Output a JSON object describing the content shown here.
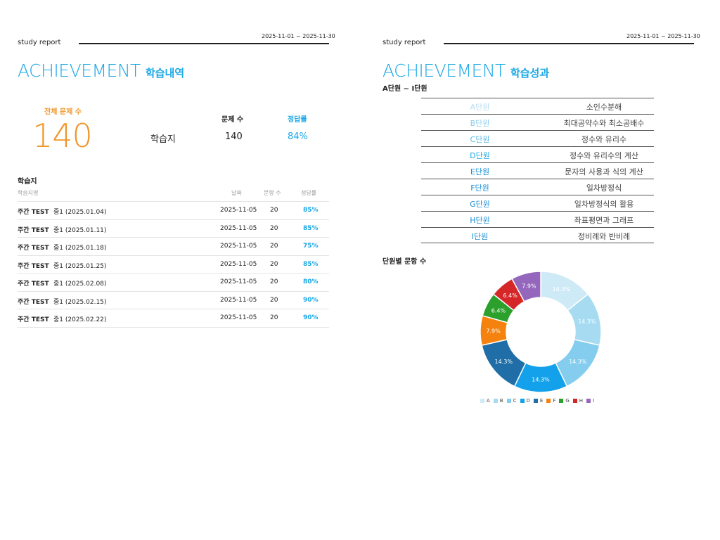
{
  "colors": {
    "accent": "#1aa7e6",
    "orange": "#f0962a"
  },
  "left": {
    "header_label": "study report",
    "header_date": "2025-11-01 ~ 2025-11-30",
    "title_big": "ACHIEVEMENT",
    "title_small": "학습내역",
    "summary": {
      "total_label": "전체 문제 수",
      "total_value": "140",
      "col_count_label": "문제 수",
      "col_rate_label": "정답률",
      "row_label": "학습지",
      "row_count": "140",
      "row_rate": "84%"
    },
    "worksheets": {
      "section_title": "학습지",
      "headers": {
        "name": "학습지명",
        "date": "날짜",
        "count": "문항 수",
        "rate": "정답률"
      },
      "rows": [
        {
          "name": "주간 TEST",
          "sub": "중1 (2025.01.04)",
          "date": "2025-11-05",
          "count": "20",
          "rate": "85%"
        },
        {
          "name": "주간 TEST",
          "sub": "중1 (2025.01.11)",
          "date": "2025-11-05",
          "count": "20",
          "rate": "85%"
        },
        {
          "name": "주간 TEST",
          "sub": "중1 (2025.01.18)",
          "date": "2025-11-05",
          "count": "20",
          "rate": "75%"
        },
        {
          "name": "주간 TEST",
          "sub": "중1 (2025.01.25)",
          "date": "2025-11-05",
          "count": "20",
          "rate": "85%"
        },
        {
          "name": "주간 TEST",
          "sub": "중1 (2025.02.08)",
          "date": "2025-11-05",
          "count": "20",
          "rate": "80%"
        },
        {
          "name": "주간 TEST",
          "sub": "중1 (2025.02.15)",
          "date": "2025-11-05",
          "count": "20",
          "rate": "90%"
        },
        {
          "name": "주간 TEST",
          "sub": "중1 (2025.02.22)",
          "date": "2025-11-05",
          "count": "20",
          "rate": "90%"
        }
      ]
    }
  },
  "right": {
    "header_label": "study report",
    "header_date": "2025-11-01 ~ 2025-11-30",
    "title_big": "ACHIEVEMENT",
    "title_small": "학습성과",
    "range_label": "A단원 ~ I단원",
    "units": [
      {
        "name": "A단원",
        "desc": "소인수분해",
        "color": "#b3ddf2"
      },
      {
        "name": "B단원",
        "desc": "최대공약수와 최소공배수",
        "color": "#8ccdee"
      },
      {
        "name": "C단원",
        "desc": "정수와 유리수",
        "color": "#5bb8e8"
      },
      {
        "name": "D단원",
        "desc": "정수와 유리수의 계산",
        "color": "#1aa7e6"
      },
      {
        "name": "E단원",
        "desc": "문자의 사용과 식의 계산",
        "color": "#1a8fd6"
      },
      {
        "name": "F단원",
        "desc": "일차방정식",
        "color": "#1a8fd6"
      },
      {
        "name": "G단원",
        "desc": "일차방정식의 활용",
        "color": "#1a8fd6"
      },
      {
        "name": "H단원",
        "desc": "좌표평면과 그래프",
        "color": "#1a8fd6"
      },
      {
        "name": "I단원",
        "desc": "정비례와 반비례",
        "color": "#1a8fd6"
      }
    ],
    "chart_title": "단원별 문항 수"
  },
  "chart_data": {
    "type": "pie",
    "title": "단원별 문항 수",
    "donut": true,
    "categories": [
      "A",
      "B",
      "C",
      "D",
      "E",
      "F",
      "G",
      "H",
      "I"
    ],
    "values": [
      14.3,
      14.3,
      14.3,
      14.3,
      14.3,
      7.9,
      6.4,
      6.4,
      7.9
    ],
    "labels": [
      "14.3%",
      "14.3%",
      "14.3%",
      "14.3%",
      "14.3%",
      "7.9%",
      "6.4%",
      "6.4%",
      "7.9%"
    ],
    "colors": [
      "#cfeaf7",
      "#a6dbf2",
      "#84cdee",
      "#12a1ea",
      "#1f6ea8",
      "#f5820f",
      "#2ca02c",
      "#d62728",
      "#9467bd"
    ],
    "legend": "bottom"
  }
}
